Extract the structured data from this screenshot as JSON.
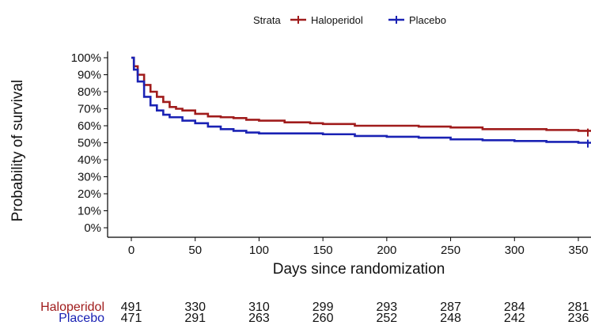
{
  "chart_data": {
    "type": "line",
    "subtype": "kaplan-meier",
    "legend_title": "Strata",
    "legend_position": "top",
    "xlabel": "Days since randomization",
    "ylabel": "Probability of survival",
    "xlim": [
      0,
      365
    ],
    "ylim": [
      0,
      100
    ],
    "x_ticks": [
      0,
      50,
      100,
      150,
      200,
      250,
      300,
      350
    ],
    "y_ticks": [
      0,
      10,
      20,
      30,
      40,
      50,
      60,
      70,
      80,
      90,
      100
    ],
    "y_tick_labels": [
      "0%",
      "10%",
      "20%",
      "30%",
      "40%",
      "50%",
      "60%",
      "70%",
      "80%",
      "90%",
      "100%"
    ],
    "grid": false,
    "series": [
      {
        "name": "Haloperidol",
        "color": "#a01c1c",
        "points": [
          [
            0,
            100
          ],
          [
            2,
            95
          ],
          [
            5,
            90
          ],
          [
            10,
            84
          ],
          [
            15,
            80
          ],
          [
            20,
            77
          ],
          [
            25,
            74
          ],
          [
            30,
            71
          ],
          [
            35,
            70
          ],
          [
            40,
            69
          ],
          [
            50,
            67
          ],
          [
            60,
            65.5
          ],
          [
            70,
            65
          ],
          [
            80,
            64.5
          ],
          [
            90,
            63.5
          ],
          [
            100,
            63
          ],
          [
            120,
            62
          ],
          [
            140,
            61.5
          ],
          [
            150,
            61
          ],
          [
            175,
            60
          ],
          [
            200,
            60
          ],
          [
            225,
            59.5
          ],
          [
            250,
            59
          ],
          [
            275,
            58
          ],
          [
            300,
            58
          ],
          [
            325,
            57.5
          ],
          [
            350,
            57
          ],
          [
            365,
            56
          ]
        ],
        "risk_table": [
          491,
          330,
          310,
          299,
          293,
          287,
          284,
          281
        ]
      },
      {
        "name": "Placebo",
        "color": "#1a22b4",
        "points": [
          [
            0,
            100
          ],
          [
            2,
            93
          ],
          [
            5,
            86
          ],
          [
            10,
            77
          ],
          [
            15,
            72
          ],
          [
            20,
            69
          ],
          [
            25,
            66.5
          ],
          [
            30,
            65
          ],
          [
            40,
            63
          ],
          [
            50,
            61.5
          ],
          [
            60,
            59.5
          ],
          [
            70,
            58
          ],
          [
            80,
            57
          ],
          [
            90,
            56
          ],
          [
            100,
            55.5
          ],
          [
            120,
            55.5
          ],
          [
            150,
            55
          ],
          [
            175,
            54
          ],
          [
            200,
            53.5
          ],
          [
            225,
            53
          ],
          [
            250,
            52
          ],
          [
            275,
            51.5
          ],
          [
            300,
            51
          ],
          [
            325,
            50.5
          ],
          [
            350,
            50
          ],
          [
            365,
            49.5
          ]
        ],
        "risk_table": [
          471,
          291,
          263,
          260,
          252,
          248,
          242,
          236
        ]
      }
    ],
    "risk_table_x": [
      0,
      50,
      100,
      150,
      200,
      250,
      300,
      350
    ]
  }
}
